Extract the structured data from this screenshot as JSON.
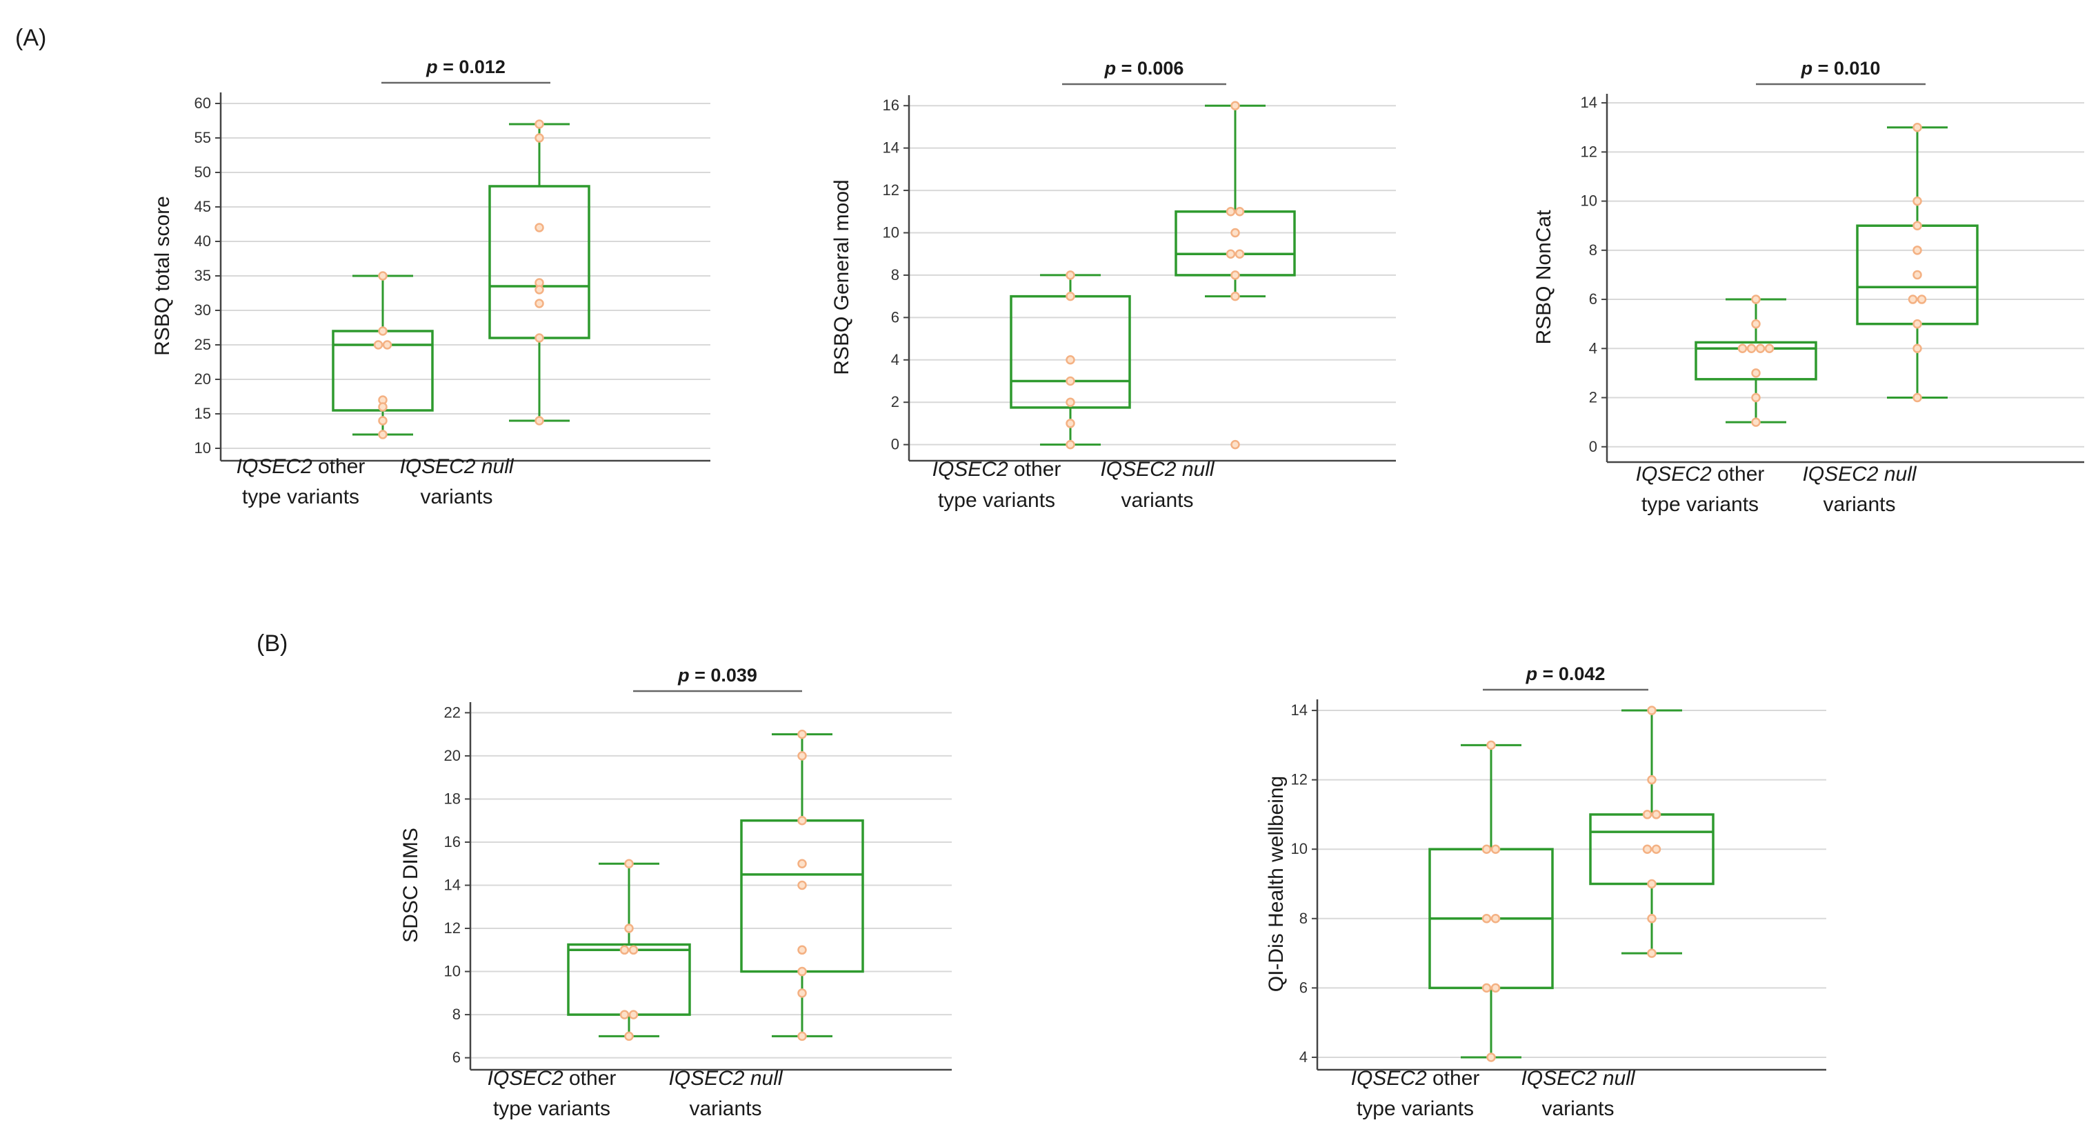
{
  "panels": {
    "a": "(A)",
    "b": "(B)"
  },
  "categories": [
    {
      "gene": "IQSEC2",
      "rest": "  other",
      "line2": "type variants"
    },
    {
      "gene": "IQSEC2 null",
      "rest": "",
      "line2": "variants"
    }
  ],
  "colors": {
    "box": "#2e9a2e",
    "point": "#f4b183",
    "grid": "#d8d8d8",
    "axis": "#444444"
  },
  "chart_data": [
    {
      "type": "box",
      "title": "",
      "ylabel": "RSBQ total score",
      "p_label": "p = 0.012",
      "ylim": [
        9,
        61
      ],
      "yticks": [
        10,
        15,
        20,
        25,
        30,
        35,
        40,
        45,
        50,
        55,
        60
      ],
      "boxes": [
        {
          "q1": 15.5,
          "median": 25,
          "q3": 27,
          "whisker_low": 12,
          "whisker_high": 35,
          "points": [
            35,
            27,
            25,
            25,
            17,
            16,
            14,
            12
          ]
        },
        {
          "q1": 26,
          "median": 33.5,
          "q3": 48,
          "whisker_low": 14,
          "whisker_high": 57,
          "points": [
            57,
            55,
            42,
            34,
            33,
            31,
            26,
            14
          ]
        }
      ]
    },
    {
      "type": "box",
      "title": "",
      "ylabel": "RSBQ General mood",
      "p_label": "p = 0.006",
      "ylim": [
        -0.5,
        16.3
      ],
      "yticks": [
        0,
        2,
        4,
        6,
        8,
        10,
        12,
        14,
        16
      ],
      "boxes": [
        {
          "q1": 1.75,
          "median": 3,
          "q3": 7,
          "whisker_low": 0,
          "whisker_high": 8,
          "points": [
            8,
            7,
            4,
            3,
            2,
            1,
            0
          ]
        },
        {
          "q1": 8,
          "median": 9,
          "q3": 11,
          "whisker_low": 7,
          "whisker_high": 16,
          "points": [
            16,
            11,
            11,
            10,
            9,
            9,
            8,
            7,
            0
          ]
        }
      ]
    },
    {
      "type": "box",
      "title": "",
      "ylabel": "RSBQ NonCat",
      "p_label": "p = 0.010",
      "ylim": [
        -0.4,
        14.2
      ],
      "yticks": [
        0,
        2,
        4,
        6,
        8,
        10,
        12,
        14
      ],
      "boxes": [
        {
          "q1": 2.75,
          "median": 4,
          "q3": 4.25,
          "whisker_low": 1,
          "whisker_high": 6,
          "points": [
            6,
            5,
            4,
            4,
            4,
            4,
            3,
            2,
            1
          ]
        },
        {
          "q1": 5,
          "median": 6.5,
          "q3": 9,
          "whisker_low": 2,
          "whisker_high": 13,
          "points": [
            13,
            10,
            9,
            8,
            7,
            6,
            6,
            5,
            4,
            2
          ]
        }
      ]
    },
    {
      "type": "box",
      "title": "",
      "ylabel": "SDSC  DIMS",
      "p_label": "p = 0.039",
      "ylim": [
        5.7,
        22.3
      ],
      "yticks": [
        6,
        8,
        10,
        12,
        14,
        16,
        18,
        20,
        22
      ],
      "boxes": [
        {
          "q1": 8,
          "median": 11,
          "q3": 11.25,
          "whisker_low": 7,
          "whisker_high": 15,
          "points": [
            15,
            12,
            11,
            11,
            8,
            8,
            7
          ]
        },
        {
          "q1": 10,
          "median": 14.5,
          "q3": 17,
          "whisker_low": 7,
          "whisker_high": 21,
          "points": [
            21,
            20,
            17,
            15,
            14,
            11,
            10,
            9,
            7
          ]
        }
      ]
    },
    {
      "type": "box",
      "title": "",
      "ylabel": "QI-Dis Health wellbeing",
      "p_label": "p = 0.042",
      "ylim": [
        3.8,
        14.2
      ],
      "yticks": [
        4,
        6,
        8,
        10,
        12,
        14
      ],
      "boxes": [
        {
          "q1": 6,
          "median": 8,
          "q3": 10,
          "whisker_low": 4,
          "whisker_high": 13,
          "points": [
            13,
            10,
            10,
            8,
            8,
            6,
            6,
            4
          ]
        },
        {
          "q1": 9,
          "median": 10.5,
          "q3": 11,
          "whisker_low": 7,
          "whisker_high": 14,
          "points": [
            14,
            12,
            11,
            11,
            10,
            10,
            9,
            8,
            7
          ]
        }
      ]
    }
  ]
}
